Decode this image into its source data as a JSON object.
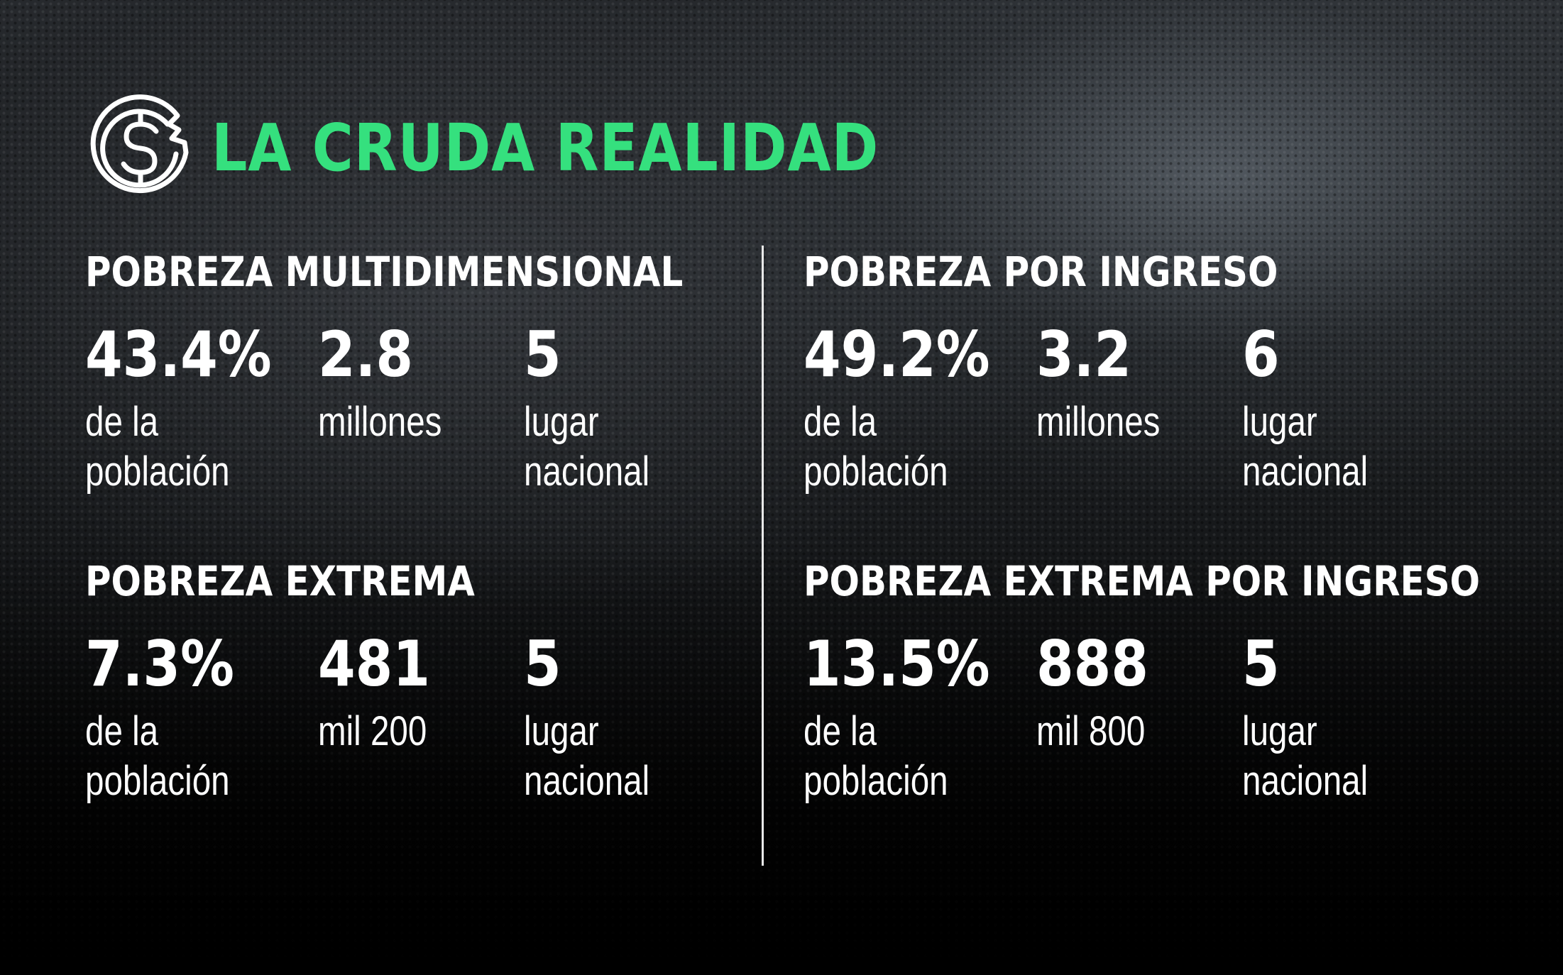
{
  "header": {
    "logo_icon": "dollar-coin-broken-icon",
    "title": "LA CRUDA REALIDAD",
    "accent_color": "#35e07e"
  },
  "sections": [
    {
      "title": "POBREZA MULTIDIMENSIONAL",
      "stats": [
        {
          "value": "43.4%",
          "label": "de la\npoblación"
        },
        {
          "value": "2.8",
          "label": "millones"
        },
        {
          "value": "5",
          "label": "lugar\nnacional"
        }
      ]
    },
    {
      "title": "POBREZA POR INGRESO",
      "stats": [
        {
          "value": "49.2%",
          "label": "de la\npoblación"
        },
        {
          "value": "3.2",
          "label": "millones"
        },
        {
          "value": "6",
          "label": "lugar\nnacional"
        }
      ]
    },
    {
      "title": "POBREZA EXTREMA",
      "stats": [
        {
          "value": "7.3%",
          "label": "de la\npoblación"
        },
        {
          "value": "481",
          "label": "mil 200"
        },
        {
          "value": "5",
          "label": "lugar\nnacional"
        }
      ]
    },
    {
      "title": "POBREZA EXTREMA POR INGRESO",
      "stats": [
        {
          "value": "13.5%",
          "label": "de la\npoblación"
        },
        {
          "value": "888",
          "label": "mil 800"
        },
        {
          "value": "5",
          "label": "lugar\nnacional"
        }
      ]
    }
  ]
}
